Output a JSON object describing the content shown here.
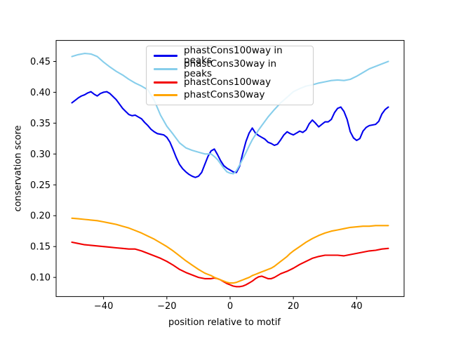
{
  "figure": {
    "background": "#ffffff",
    "border_color": "#000000"
  },
  "chart_data": {
    "type": "line",
    "title": "",
    "xlabel": "position relative to motif",
    "ylabel": "conservation score",
    "xlim": [
      -55,
      55
    ],
    "ylim": [
      0.069,
      0.484
    ],
    "grid": false,
    "legend_position": "upper center",
    "x_tick_values": [
      -40,
      -20,
      0,
      20,
      40
    ],
    "x_tick_labels": [
      "−40",
      "−20",
      "0",
      "20",
      "40"
    ],
    "y_tick_values": [
      0.1,
      0.15,
      0.2,
      0.25,
      0.3,
      0.35,
      0.4,
      0.45
    ],
    "y_tick_labels": [
      "0.10",
      "0.15",
      "0.20",
      "0.25",
      "0.30",
      "0.35",
      "0.40",
      "0.45"
    ],
    "series": [
      {
        "name": "phastCons100way in peaks",
        "color": "#0000ee",
        "points": [
          [
            -50,
            0.383
          ],
          [
            -49,
            0.387
          ],
          [
            -48,
            0.391
          ],
          [
            -47,
            0.394
          ],
          [
            -46,
            0.396
          ],
          [
            -45,
            0.399
          ],
          [
            -44,
            0.401
          ],
          [
            -43,
            0.397
          ],
          [
            -42,
            0.394
          ],
          [
            -41,
            0.398
          ],
          [
            -40,
            0.4
          ],
          [
            -39,
            0.401
          ],
          [
            -38,
            0.398
          ],
          [
            -37,
            0.393
          ],
          [
            -36,
            0.388
          ],
          [
            -35,
            0.381
          ],
          [
            -34,
            0.374
          ],
          [
            -33,
            0.369
          ],
          [
            -32,
            0.364
          ],
          [
            -31,
            0.362
          ],
          [
            -30,
            0.363
          ],
          [
            -29,
            0.36
          ],
          [
            -28,
            0.357
          ],
          [
            -27,
            0.351
          ],
          [
            -26,
            0.346
          ],
          [
            -25,
            0.34
          ],
          [
            -24,
            0.336
          ],
          [
            -23,
            0.333
          ],
          [
            -22,
            0.332
          ],
          [
            -21,
            0.331
          ],
          [
            -20,
            0.327
          ],
          [
            -19,
            0.319
          ],
          [
            -18,
            0.307
          ],
          [
            -17,
            0.294
          ],
          [
            -16,
            0.283
          ],
          [
            -15,
            0.276
          ],
          [
            -14,
            0.271
          ],
          [
            -13,
            0.267
          ],
          [
            -12,
            0.264
          ],
          [
            -11,
            0.262
          ],
          [
            -10,
            0.264
          ],
          [
            -9,
            0.27
          ],
          [
            -8,
            0.283
          ],
          [
            -7,
            0.296
          ],
          [
            -6,
            0.305
          ],
          [
            -5,
            0.308
          ],
          [
            -4,
            0.299
          ],
          [
            -3,
            0.289
          ],
          [
            -2,
            0.281
          ],
          [
            -1,
            0.277
          ],
          [
            0,
            0.274
          ],
          [
            1,
            0.271
          ],
          [
            2,
            0.27
          ],
          [
            3,
            0.28
          ],
          [
            4,
            0.301
          ],
          [
            5,
            0.32
          ],
          [
            6,
            0.334
          ],
          [
            7,
            0.342
          ],
          [
            8,
            0.334
          ],
          [
            9,
            0.33
          ],
          [
            10,
            0.327
          ],
          [
            11,
            0.324
          ],
          [
            12,
            0.319
          ],
          [
            13,
            0.317
          ],
          [
            14,
            0.314
          ],
          [
            15,
            0.316
          ],
          [
            16,
            0.323
          ],
          [
            17,
            0.331
          ],
          [
            18,
            0.336
          ],
          [
            19,
            0.333
          ],
          [
            20,
            0.331
          ],
          [
            21,
            0.334
          ],
          [
            22,
            0.337
          ],
          [
            23,
            0.335
          ],
          [
            24,
            0.339
          ],
          [
            25,
            0.349
          ],
          [
            26,
            0.355
          ],
          [
            27,
            0.35
          ],
          [
            28,
            0.344
          ],
          [
            29,
            0.348
          ],
          [
            30,
            0.352
          ],
          [
            31,
            0.352
          ],
          [
            32,
            0.356
          ],
          [
            33,
            0.367
          ],
          [
            34,
            0.374
          ],
          [
            35,
            0.376
          ],
          [
            36,
            0.369
          ],
          [
            37,
            0.356
          ],
          [
            38,
            0.336
          ],
          [
            39,
            0.326
          ],
          [
            40,
            0.322
          ],
          [
            41,
            0.325
          ],
          [
            42,
            0.337
          ],
          [
            43,
            0.343
          ],
          [
            44,
            0.346
          ],
          [
            45,
            0.347
          ],
          [
            46,
            0.348
          ],
          [
            47,
            0.353
          ],
          [
            48,
            0.365
          ],
          [
            49,
            0.372
          ],
          [
            50,
            0.376
          ]
        ]
      },
      {
        "name": "phastCons30way in peaks",
        "color": "#87ceeb",
        "points": [
          [
            -50,
            0.458
          ],
          [
            -48,
            0.461
          ],
          [
            -46,
            0.463
          ],
          [
            -44,
            0.462
          ],
          [
            -42,
            0.458
          ],
          [
            -40,
            0.449
          ],
          [
            -38,
            0.441
          ],
          [
            -36,
            0.434
          ],
          [
            -34,
            0.428
          ],
          [
            -32,
            0.421
          ],
          [
            -30,
            0.415
          ],
          [
            -28,
            0.41
          ],
          [
            -26,
            0.404
          ],
          [
            -24,
            0.387
          ],
          [
            -22,
            0.363
          ],
          [
            -20,
            0.345
          ],
          [
            -18,
            0.332
          ],
          [
            -16,
            0.318
          ],
          [
            -14,
            0.31
          ],
          [
            -12,
            0.306
          ],
          [
            -10,
            0.303
          ],
          [
            -8,
            0.3
          ],
          [
            -6,
            0.3
          ],
          [
            -5,
            0.296
          ],
          [
            -4,
            0.291
          ],
          [
            -3,
            0.284
          ],
          [
            -2,
            0.277
          ],
          [
            -1,
            0.271
          ],
          [
            0,
            0.269
          ],
          [
            1,
            0.268
          ],
          [
            2,
            0.273
          ],
          [
            3,
            0.282
          ],
          [
            4,
            0.292
          ],
          [
            5,
            0.302
          ],
          [
            6,
            0.313
          ],
          [
            7,
            0.323
          ],
          [
            8,
            0.331
          ],
          [
            9,
            0.339
          ],
          [
            10,
            0.346
          ],
          [
            12,
            0.36
          ],
          [
            14,
            0.372
          ],
          [
            16,
            0.383
          ],
          [
            18,
            0.392
          ],
          [
            20,
            0.401
          ],
          [
            22,
            0.406
          ],
          [
            24,
            0.41
          ],
          [
            26,
            0.412
          ],
          [
            28,
            0.415
          ],
          [
            30,
            0.417
          ],
          [
            32,
            0.419
          ],
          [
            34,
            0.42
          ],
          [
            36,
            0.419
          ],
          [
            38,
            0.421
          ],
          [
            40,
            0.426
          ],
          [
            42,
            0.432
          ],
          [
            44,
            0.438
          ],
          [
            46,
            0.442
          ],
          [
            48,
            0.446
          ],
          [
            50,
            0.45
          ]
        ]
      },
      {
        "name": "phastCons100way",
        "color": "#f20000",
        "points": [
          [
            -50,
            0.157
          ],
          [
            -48,
            0.155
          ],
          [
            -46,
            0.153
          ],
          [
            -44,
            0.152
          ],
          [
            -42,
            0.151
          ],
          [
            -40,
            0.15
          ],
          [
            -38,
            0.149
          ],
          [
            -36,
            0.148
          ],
          [
            -34,
            0.147
          ],
          [
            -32,
            0.146
          ],
          [
            -30,
            0.146
          ],
          [
            -28,
            0.143
          ],
          [
            -26,
            0.139
          ],
          [
            -24,
            0.135
          ],
          [
            -22,
            0.131
          ],
          [
            -20,
            0.126
          ],
          [
            -18,
            0.12
          ],
          [
            -16,
            0.113
          ],
          [
            -14,
            0.108
          ],
          [
            -12,
            0.104
          ],
          [
            -10,
            0.1
          ],
          [
            -9,
            0.099
          ],
          [
            -8,
            0.098
          ],
          [
            -7,
            0.098
          ],
          [
            -6,
            0.098
          ],
          [
            -5,
            0.099
          ],
          [
            -4,
            0.098
          ],
          [
            -3,
            0.096
          ],
          [
            -2,
            0.093
          ],
          [
            -1,
            0.09
          ],
          [
            0,
            0.088
          ],
          [
            1,
            0.086
          ],
          [
            2,
            0.085
          ],
          [
            3,
            0.085
          ],
          [
            4,
            0.086
          ],
          [
            5,
            0.088
          ],
          [
            6,
            0.091
          ],
          [
            7,
            0.094
          ],
          [
            8,
            0.098
          ],
          [
            9,
            0.101
          ],
          [
            10,
            0.102
          ],
          [
            11,
            0.1
          ],
          [
            12,
            0.098
          ],
          [
            13,
            0.098
          ],
          [
            14,
            0.1
          ],
          [
            15,
            0.103
          ],
          [
            16,
            0.106
          ],
          [
            18,
            0.11
          ],
          [
            20,
            0.115
          ],
          [
            22,
            0.121
          ],
          [
            24,
            0.126
          ],
          [
            26,
            0.131
          ],
          [
            28,
            0.134
          ],
          [
            30,
            0.136
          ],
          [
            32,
            0.136
          ],
          [
            34,
            0.136
          ],
          [
            36,
            0.135
          ],
          [
            38,
            0.137
          ],
          [
            40,
            0.139
          ],
          [
            42,
            0.141
          ],
          [
            44,
            0.143
          ],
          [
            46,
            0.144
          ],
          [
            48,
            0.146
          ],
          [
            50,
            0.147
          ]
        ]
      },
      {
        "name": "phastCons30way",
        "color": "#ffa500",
        "points": [
          [
            -50,
            0.196
          ],
          [
            -48,
            0.195
          ],
          [
            -46,
            0.194
          ],
          [
            -44,
            0.193
          ],
          [
            -42,
            0.192
          ],
          [
            -40,
            0.19
          ],
          [
            -38,
            0.188
          ],
          [
            -36,
            0.186
          ],
          [
            -34,
            0.183
          ],
          [
            -32,
            0.18
          ],
          [
            -30,
            0.176
          ],
          [
            -28,
            0.172
          ],
          [
            -26,
            0.167
          ],
          [
            -24,
            0.162
          ],
          [
            -22,
            0.156
          ],
          [
            -20,
            0.15
          ],
          [
            -18,
            0.143
          ],
          [
            -16,
            0.135
          ],
          [
            -14,
            0.127
          ],
          [
            -12,
            0.12
          ],
          [
            -10,
            0.113
          ],
          [
            -9,
            0.11
          ],
          [
            -8,
            0.107
          ],
          [
            -7,
            0.105
          ],
          [
            -6,
            0.103
          ],
          [
            -5,
            0.1
          ],
          [
            -4,
            0.098
          ],
          [
            -3,
            0.096
          ],
          [
            -2,
            0.094
          ],
          [
            -1,
            0.092
          ],
          [
            0,
            0.091
          ],
          [
            1,
            0.091
          ],
          [
            2,
            0.092
          ],
          [
            3,
            0.094
          ],
          [
            4,
            0.096
          ],
          [
            5,
            0.098
          ],
          [
            6,
            0.1
          ],
          [
            7,
            0.103
          ],
          [
            8,
            0.105
          ],
          [
            9,
            0.107
          ],
          [
            10,
            0.109
          ],
          [
            11,
            0.111
          ],
          [
            12,
            0.113
          ],
          [
            13,
            0.115
          ],
          [
            14,
            0.118
          ],
          [
            15,
            0.122
          ],
          [
            16,
            0.126
          ],
          [
            17,
            0.13
          ],
          [
            18,
            0.134
          ],
          [
            19,
            0.139
          ],
          [
            20,
            0.143
          ],
          [
            22,
            0.15
          ],
          [
            24,
            0.157
          ],
          [
            26,
            0.163
          ],
          [
            28,
            0.168
          ],
          [
            30,
            0.172
          ],
          [
            32,
            0.175
          ],
          [
            34,
            0.177
          ],
          [
            36,
            0.179
          ],
          [
            38,
            0.181
          ],
          [
            40,
            0.182
          ],
          [
            42,
            0.183
          ],
          [
            44,
            0.183
          ],
          [
            46,
            0.184
          ],
          [
            48,
            0.184
          ],
          [
            50,
            0.184
          ]
        ]
      }
    ]
  }
}
